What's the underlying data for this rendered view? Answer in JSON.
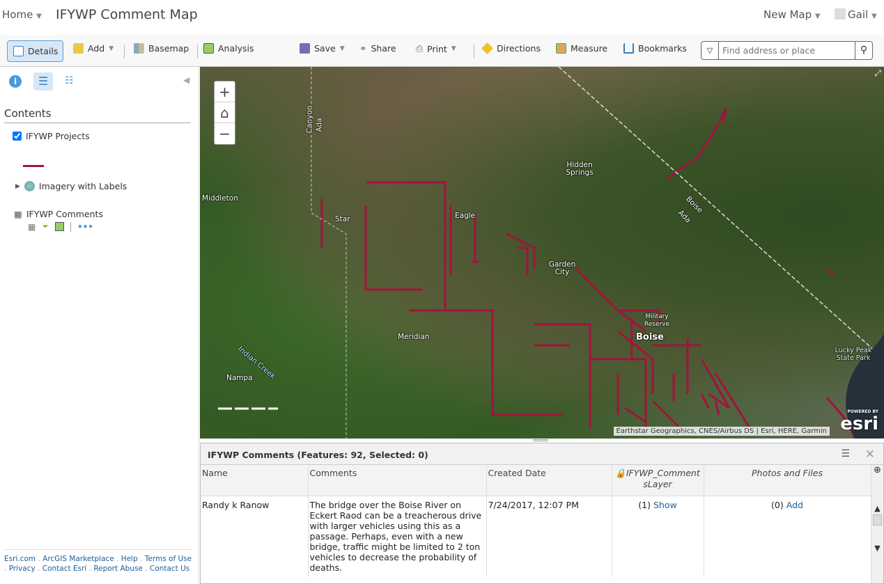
{
  "header": {
    "home": "Home",
    "title": "IFYWP Comment Map",
    "new_map": "New Map",
    "user": "Gail"
  },
  "toolbar": {
    "details": "Details",
    "add": "Add",
    "basemap": "Basemap",
    "analysis": "Analysis",
    "save": "Save",
    "share": "Share",
    "print": "Print",
    "directions": "Directions",
    "measure": "Measure",
    "bookmarks": "Bookmarks",
    "search_placeholder": "Find address or place"
  },
  "sidebar": {
    "heading": "Contents",
    "layers": [
      {
        "label": "IFYWP Projects",
        "checked": true,
        "symbol_color": "#a3123f"
      },
      {
        "label": "Imagery with Labels"
      },
      {
        "label": "IFYWP Comments"
      }
    ],
    "footer": [
      "Esri.com",
      "ArcGIS Marketplace",
      "Help",
      "Terms of Use",
      "Privacy",
      "Contact Esri",
      "Report Abuse",
      "Contact Us"
    ]
  },
  "map": {
    "labels": [
      "Canyon",
      "Ada",
      "Middleton",
      "Star",
      "Eagle",
      "Hidden Springs",
      "Garden City",
      "Military Reserve",
      "Boise",
      "Meridian",
      "Nampa",
      "Indian Creek",
      "Boise",
      "Ada",
      "Lucky Peak State Park"
    ],
    "attribution": "Earthstar Geographics, CNES/Airbus DS | Esri, HERE, Garmin",
    "logo": "esri",
    "logo_small": "POWERED BY",
    "line_color": "#a3123f"
  },
  "table": {
    "title": "IFYWP Comments (Features: 92, Selected: 0)",
    "columns": [
      "Name",
      "Comments",
      "Created Date",
      "IFYWP_CommentsLayer",
      "Photos and Files"
    ],
    "rows": [
      {
        "name": "Randy k Ranow",
        "comment": "The bridge over the Boise River on Eckert Raod can be a treacherous drive with larger vehicles using this as a passage. Perhaps, even with a new bridge, traffic might be limited to 2 ton vehicles to decrease the probability of deaths.",
        "date": "7/24/2017, 12:07 PM",
        "related_count": "(1)",
        "related_link": "Show",
        "files_count": "(0)",
        "files_link": "Add"
      }
    ]
  }
}
